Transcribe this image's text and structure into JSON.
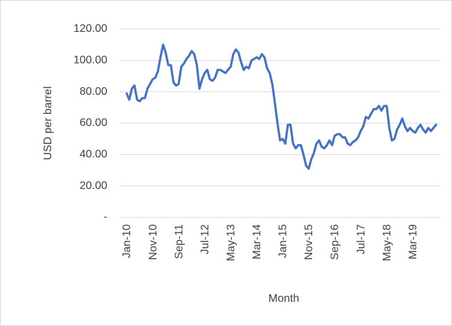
{
  "chart_data": {
    "type": "line",
    "x_label": "Month",
    "y_label": "USD per barrel",
    "categories": [
      "Jan-10",
      null,
      null,
      null,
      null,
      null,
      null,
      null,
      null,
      null,
      "Nov-10",
      null,
      null,
      null,
      null,
      null,
      null,
      null,
      null,
      null,
      "Sep-11",
      null,
      null,
      null,
      null,
      null,
      null,
      null,
      null,
      null,
      "Jul-12",
      null,
      null,
      null,
      null,
      null,
      null,
      null,
      null,
      null,
      "May-13",
      null,
      null,
      null,
      null,
      null,
      null,
      null,
      null,
      null,
      "Mar-14",
      null,
      null,
      null,
      null,
      null,
      null,
      null,
      null,
      null,
      "Jan-15",
      null,
      null,
      null,
      null,
      null,
      null,
      null,
      null,
      null,
      "Nov-15",
      null,
      null,
      null,
      null,
      null,
      null,
      null,
      null,
      null,
      "Sep-16",
      null,
      null,
      null,
      null,
      null,
      null,
      null,
      null,
      null,
      "Jul-17",
      null,
      null,
      null,
      null,
      null,
      null,
      null,
      null,
      null,
      "May-18",
      null,
      null,
      null,
      null,
      null,
      null,
      null,
      null,
      null,
      "Mar-19",
      null,
      null,
      null,
      null,
      null,
      null,
      null,
      null,
      null
    ],
    "values": [
      79,
      75,
      82,
      84,
      75,
      74,
      76,
      76,
      82,
      85,
      88,
      89,
      93,
      102,
      110,
      105,
      97,
      97,
      86,
      84,
      85,
      96,
      98,
      101,
      103,
      106,
      104,
      97,
      82,
      88,
      92,
      94,
      88,
      87,
      89,
      94,
      94,
      93,
      92,
      94,
      96,
      104,
      107,
      105,
      99,
      94,
      96,
      95,
      100,
      101,
      102,
      101,
      104,
      102,
      95,
      92,
      85,
      73,
      60,
      49,
      50,
      47,
      59,
      59,
      47,
      44,
      46,
      46,
      40,
      33,
      31,
      37,
      41,
      47,
      49,
      45,
      44,
      46,
      49,
      46,
      52,
      53,
      53,
      51,
      51,
      47,
      46,
      48,
      49,
      51,
      55,
      58,
      64,
      63,
      66,
      69,
      69,
      71,
      68,
      71,
      71,
      57,
      49,
      50,
      56,
      59,
      63,
      58,
      55,
      57,
      55,
      54,
      57,
      59,
      56,
      54,
      57,
      55,
      57,
      59
    ],
    "color": "#4472c4",
    "ylim": [
      0,
      120
    ],
    "yticks": [
      {
        "value": 0,
        "label": "-"
      },
      {
        "value": 20,
        "label": "20.00"
      },
      {
        "value": 40,
        "label": "40.00"
      },
      {
        "value": 60,
        "label": "60.00"
      },
      {
        "value": 80,
        "label": "80.00"
      },
      {
        "value": 100,
        "label": "100.00"
      },
      {
        "value": 120,
        "label": "120.00"
      }
    ],
    "grid": true
  }
}
